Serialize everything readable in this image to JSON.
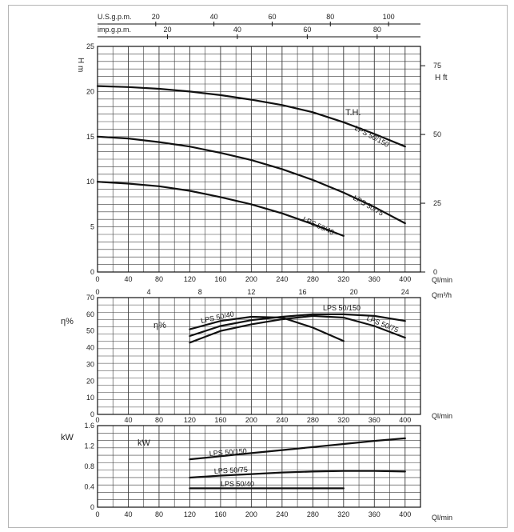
{
  "chart_data": [
    {
      "type": "line",
      "name": "head",
      "top_axes": {
        "usgpm": {
          "label": "U.S.g.p.m.",
          "ticks": [
            "20",
            "40",
            "60",
            "80",
            "100"
          ],
          "values": [
            20,
            40,
            60,
            80,
            100
          ]
        },
        "impgpm": {
          "label": "imp.g.p.m.",
          "ticks": [
            "20",
            "40",
            "60",
            "80"
          ],
          "values": [
            20,
            40,
            60,
            80
          ]
        }
      },
      "x": {
        "label": "Ql/min",
        "ticks": [
          "0",
          "40",
          "80",
          "120",
          "160",
          "200",
          "240",
          "280",
          "320",
          "360",
          "400"
        ],
        "lim": [
          0,
          420
        ]
      },
      "y_left": {
        "label": "H m",
        "ticks": [
          "0",
          "5",
          "10",
          "15",
          "20",
          "25"
        ],
        "lim": [
          0,
          25
        ]
      },
      "y_right": {
        "label": "H ft",
        "ticks": [
          "0",
          "25",
          "50",
          "75"
        ],
        "values": [
          0,
          25,
          50,
          75
        ]
      },
      "annotation": "T.H.",
      "series": [
        {
          "name": "LPS 50/150",
          "x": [
            0,
            40,
            80,
            120,
            160,
            200,
            240,
            280,
            320,
            360,
            400
          ],
          "y": [
            20.6,
            20.5,
            20.3,
            20.0,
            19.6,
            19.1,
            18.5,
            17.7,
            16.6,
            15.3,
            13.9
          ]
        },
        {
          "name": "LPS 50/75",
          "x": [
            0,
            40,
            80,
            120,
            160,
            200,
            240,
            280,
            320,
            360,
            400
          ],
          "y": [
            15.0,
            14.8,
            14.4,
            13.9,
            13.2,
            12.4,
            11.4,
            10.2,
            8.8,
            7.2,
            5.4
          ]
        },
        {
          "name": "LPS 50/40",
          "x": [
            0,
            40,
            80,
            120,
            160,
            200,
            240,
            280,
            320
          ],
          "y": [
            10.0,
            9.8,
            9.5,
            9.0,
            8.3,
            7.5,
            6.5,
            5.3,
            4.0
          ]
        }
      ]
    },
    {
      "type": "line",
      "name": "efficiency",
      "top_axis": {
        "label": "Qm³/h",
        "ticks": [
          "0",
          "4",
          "8",
          "12",
          "16",
          "20",
          "24"
        ],
        "values": [
          0,
          4,
          8,
          12,
          16,
          20,
          24
        ]
      },
      "x": {
        "label": "Ql/min",
        "ticks": [
          "0",
          "40",
          "80",
          "120",
          "160",
          "200",
          "240",
          "280",
          "320",
          "360",
          "400"
        ],
        "lim": [
          0,
          420
        ]
      },
      "y": {
        "label": "η%",
        "ticks": [
          "0",
          "10",
          "20",
          "30",
          "40",
          "50",
          "60",
          "70"
        ],
        "lim": [
          0,
          70
        ]
      },
      "annotation": "η%",
      "series": [
        {
          "name": "LPS 50/40",
          "x": [
            120,
            160,
            200,
            240,
            280,
            320
          ],
          "y": [
            51,
            56,
            58.5,
            58,
            52,
            44
          ]
        },
        {
          "name": "LPS 50/75",
          "x": [
            120,
            160,
            200,
            240,
            280,
            320,
            360,
            400
          ],
          "y": [
            43,
            50,
            54,
            57,
            59,
            58,
            53,
            46
          ]
        },
        {
          "name": "LPS 50/150",
          "x": [
            120,
            160,
            200,
            240,
            280,
            320,
            360,
            400
          ],
          "y": [
            47,
            53,
            56.5,
            58.5,
            60,
            60,
            59,
            56
          ]
        }
      ]
    },
    {
      "type": "line",
      "name": "power",
      "x": {
        "label": "Ql/min",
        "ticks": [
          "0",
          "40",
          "80",
          "120",
          "160",
          "200",
          "240",
          "280",
          "320",
          "360",
          "400"
        ],
        "lim": [
          0,
          420
        ]
      },
      "y": {
        "label": "kW",
        "ticks": [
          "0",
          "0.4",
          "0.8",
          "1.2",
          "1.6"
        ],
        "lim": [
          0,
          1.6
        ]
      },
      "annotation": "kW",
      "series": [
        {
          "name": "LPS 50/150",
          "x": [
            120,
            160,
            200,
            240,
            280,
            320,
            360,
            400
          ],
          "y": [
            0.94,
            1.0,
            1.06,
            1.12,
            1.18,
            1.24,
            1.3,
            1.35
          ]
        },
        {
          "name": "LPS 50/75",
          "x": [
            120,
            160,
            200,
            240,
            280,
            320,
            360,
            400
          ],
          "y": [
            0.58,
            0.62,
            0.65,
            0.68,
            0.7,
            0.71,
            0.71,
            0.7
          ]
        },
        {
          "name": "LPS 50/40",
          "x": [
            120,
            160,
            200,
            240,
            280,
            320
          ],
          "y": [
            0.37,
            0.37,
            0.37,
            0.37,
            0.37,
            0.37
          ]
        }
      ]
    }
  ]
}
